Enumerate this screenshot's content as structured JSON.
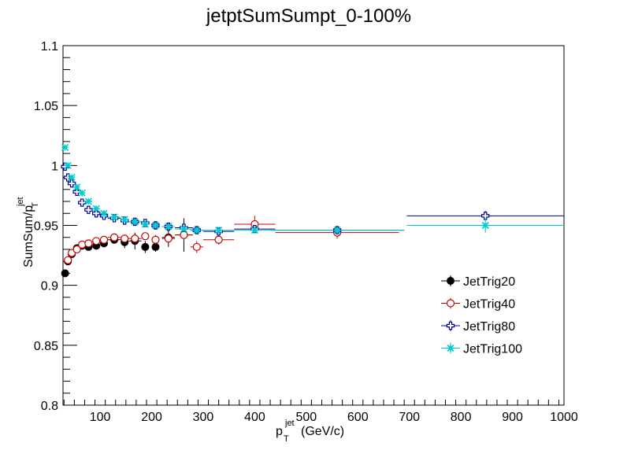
{
  "chart_data": {
    "type": "scatter",
    "title": "jetptSumSumpt_0-100%",
    "xlabel": {
      "main": "p",
      "sub": "T",
      "sup": "jet",
      "unit": "(GeV/c)"
    },
    "ylabel": {
      "main": "SumSum/p",
      "sub": "T",
      "sup": "jet"
    },
    "xlim": [
      28,
      1000
    ],
    "ylim": [
      0.8,
      1.1
    ],
    "xticks": [
      100,
      200,
      300,
      400,
      500,
      600,
      700,
      800,
      900,
      1000
    ],
    "xtick_labels": [
      "100",
      "200",
      "300",
      "400",
      "500",
      "600",
      "700",
      "800",
      "900",
      "1000"
    ],
    "yticks": [
      0.8,
      0.85,
      0.9,
      0.95,
      1.0,
      1.05,
      1.1
    ],
    "ytick_labels": [
      "0.8",
      "0.85",
      "0.9",
      "0.95",
      "1",
      "1.05",
      "1.1"
    ],
    "grid": false,
    "legend_position": "right",
    "series": [
      {
        "name": "JetTrig20",
        "color": "#000000",
        "marker": "filled-circle",
        "points": [
          {
            "x": 32,
            "y": 0.91,
            "xerr": 3,
            "yerr": 0.001
          },
          {
            "x": 37.5,
            "y": 0.92,
            "xerr": 2.5,
            "yerr": 0.001
          },
          {
            "x": 45,
            "y": 0.926,
            "xerr": 5,
            "yerr": 0.001
          },
          {
            "x": 55,
            "y": 0.931,
            "xerr": 5,
            "yerr": 0.001
          },
          {
            "x": 65,
            "y": 0.933,
            "xerr": 5,
            "yerr": 0.001
          },
          {
            "x": 77.5,
            "y": 0.932,
            "xerr": 7.5,
            "yerr": 0.001
          },
          {
            "x": 92.5,
            "y": 0.933,
            "xerr": 7.5,
            "yerr": 0.002
          },
          {
            "x": 107.5,
            "y": 0.935,
            "xerr": 7.5,
            "yerr": 0.002
          },
          {
            "x": 127.5,
            "y": 0.938,
            "xerr": 12.5,
            "yerr": 0.003
          },
          {
            "x": 147.5,
            "y": 0.936,
            "xerr": 7.5,
            "yerr": 0.005
          },
          {
            "x": 167.5,
            "y": 0.937,
            "xerr": 12.5,
            "yerr": 0.007
          },
          {
            "x": 187.5,
            "y": 0.932,
            "xerr": 7.5,
            "yerr": 0.005
          },
          {
            "x": 207.5,
            "y": 0.932,
            "xerr": 7.5,
            "yerr": 0.004
          },
          {
            "x": 232.5,
            "y": 0.94,
            "xerr": 12.5,
            "yerr": 0.008
          },
          {
            "x": 262.5,
            "y": 0.942,
            "xerr": 17.5,
            "yerr": 0.014
          }
        ]
      },
      {
        "name": "JetTrig40",
        "color": "#cc0000",
        "marker": "open-circle",
        "points": [
          {
            "x": 37.5,
            "y": 0.921,
            "xerr": 2.5,
            "yerr": 0.001
          },
          {
            "x": 45,
            "y": 0.927,
            "xerr": 5,
            "yerr": 0.001
          },
          {
            "x": 55,
            "y": 0.93,
            "xerr": 5,
            "yerr": 0.001
          },
          {
            "x": 65,
            "y": 0.934,
            "xerr": 5,
            "yerr": 0.001
          },
          {
            "x": 77.5,
            "y": 0.935,
            "xerr": 7.5,
            "yerr": 0.001
          },
          {
            "x": 92.5,
            "y": 0.937,
            "xerr": 7.5,
            "yerr": 0.001
          },
          {
            "x": 107.5,
            "y": 0.938,
            "xerr": 7.5,
            "yerr": 0.001
          },
          {
            "x": 127.5,
            "y": 0.94,
            "xerr": 12.5,
            "yerr": 0.002
          },
          {
            "x": 147.5,
            "y": 0.939,
            "xerr": 7.5,
            "yerr": 0.002
          },
          {
            "x": 167.5,
            "y": 0.939,
            "xerr": 12.5,
            "yerr": 0.003
          },
          {
            "x": 187.5,
            "y": 0.941,
            "xerr": 7.5,
            "yerr": 0.003
          },
          {
            "x": 207.5,
            "y": 0.938,
            "xerr": 7.5,
            "yerr": 0.004
          },
          {
            "x": 232.5,
            "y": 0.939,
            "xerr": 12.5,
            "yerr": 0.004
          },
          {
            "x": 262.5,
            "y": 0.942,
            "xerr": 17.5,
            "yerr": 0.005
          },
          {
            "x": 287.5,
            "y": 0.932,
            "xerr": 12.5,
            "yerr": 0.005
          },
          {
            "x": 330,
            "y": 0.938,
            "xerr": 30,
            "yerr": 0.004
          },
          {
            "x": 400,
            "y": 0.951,
            "xerr": 40,
            "yerr": 0.007
          },
          {
            "x": 560,
            "y": 0.944,
            "xerr": 120,
            "yerr": 0.005
          }
        ]
      },
      {
        "name": "JetTrig80",
        "color": "#000099",
        "marker": "open-cross",
        "points": [
          {
            "x": 32,
            "y": 0.999,
            "xerr": 3,
            "yerr": 0.001
          },
          {
            "x": 37.5,
            "y": 0.99,
            "xerr": 2.5,
            "yerr": 0.001
          },
          {
            "x": 45,
            "y": 0.985,
            "xerr": 5,
            "yerr": 0.001
          },
          {
            "x": 55,
            "y": 0.978,
            "xerr": 5,
            "yerr": 0.001
          },
          {
            "x": 65,
            "y": 0.969,
            "xerr": 5,
            "yerr": 0.001
          },
          {
            "x": 77.5,
            "y": 0.963,
            "xerr": 7.5,
            "yerr": 0.001
          },
          {
            "x": 92.5,
            "y": 0.96,
            "xerr": 7.5,
            "yerr": 0.001
          },
          {
            "x": 107.5,
            "y": 0.958,
            "xerr": 7.5,
            "yerr": 0.001
          },
          {
            "x": 127.5,
            "y": 0.956,
            "xerr": 12.5,
            "yerr": 0.001
          },
          {
            "x": 147.5,
            "y": 0.954,
            "xerr": 7.5,
            "yerr": 0.001
          },
          {
            "x": 167.5,
            "y": 0.953,
            "xerr": 12.5,
            "yerr": 0.001
          },
          {
            "x": 187.5,
            "y": 0.952,
            "xerr": 7.5,
            "yerr": 0.001
          },
          {
            "x": 207.5,
            "y": 0.95,
            "xerr": 7.5,
            "yerr": 0.001
          },
          {
            "x": 232.5,
            "y": 0.949,
            "xerr": 12.5,
            "yerr": 0.001
          },
          {
            "x": 262.5,
            "y": 0.948,
            "xerr": 17.5,
            "yerr": 0.001
          },
          {
            "x": 287.5,
            "y": 0.946,
            "xerr": 12.5,
            "yerr": 0.001
          },
          {
            "x": 330,
            "y": 0.945,
            "xerr": 30,
            "yerr": 0.001
          },
          {
            "x": 400,
            "y": 0.947,
            "xerr": 40,
            "yerr": 0.002
          },
          {
            "x": 560,
            "y": 0.946,
            "xerr": 130,
            "yerr": 0.002
          },
          {
            "x": 847.5,
            "y": 0.958,
            "xerr": 152.5,
            "yerr": 0.004
          }
        ]
      },
      {
        "name": "JetTrig100",
        "color": "#00cccc",
        "marker": "star",
        "points": [
          {
            "x": 32,
            "y": 1.015,
            "xerr": 3,
            "yerr": 0.001
          },
          {
            "x": 37.5,
            "y": 1.0,
            "xerr": 2.5,
            "yerr": 0.001
          },
          {
            "x": 45,
            "y": 0.99,
            "xerr": 5,
            "yerr": 0.001
          },
          {
            "x": 55,
            "y": 0.982,
            "xerr": 5,
            "yerr": 0.001
          },
          {
            "x": 65,
            "y": 0.977,
            "xerr": 5,
            "yerr": 0.001
          },
          {
            "x": 77.5,
            "y": 0.97,
            "xerr": 7.5,
            "yerr": 0.001
          },
          {
            "x": 92.5,
            "y": 0.964,
            "xerr": 7.5,
            "yerr": 0.001
          },
          {
            "x": 107.5,
            "y": 0.96,
            "xerr": 7.5,
            "yerr": 0.001
          },
          {
            "x": 127.5,
            "y": 0.957,
            "xerr": 12.5,
            "yerr": 0.001
          },
          {
            "x": 147.5,
            "y": 0.955,
            "xerr": 7.5,
            "yerr": 0.001
          },
          {
            "x": 167.5,
            "y": 0.953,
            "xerr": 12.5,
            "yerr": 0.001
          },
          {
            "x": 187.5,
            "y": 0.951,
            "xerr": 7.5,
            "yerr": 0.001
          },
          {
            "x": 207.5,
            "y": 0.95,
            "xerr": 7.5,
            "yerr": 0.001
          },
          {
            "x": 232.5,
            "y": 0.949,
            "xerr": 12.5,
            "yerr": 0.001
          },
          {
            "x": 262.5,
            "y": 0.947,
            "xerr": 17.5,
            "yerr": 0.001
          },
          {
            "x": 287.5,
            "y": 0.946,
            "xerr": 12.5,
            "yerr": 0.001
          },
          {
            "x": 330,
            "y": 0.946,
            "xerr": 30,
            "yerr": 0.001
          },
          {
            "x": 400,
            "y": 0.946,
            "xerr": 40,
            "yerr": 0.001
          },
          {
            "x": 560,
            "y": 0.946,
            "xerr": 130,
            "yerr": 0.002
          },
          {
            "x": 847.5,
            "y": 0.95,
            "xerr": 152.5,
            "yerr": 0.006
          }
        ]
      }
    ]
  }
}
